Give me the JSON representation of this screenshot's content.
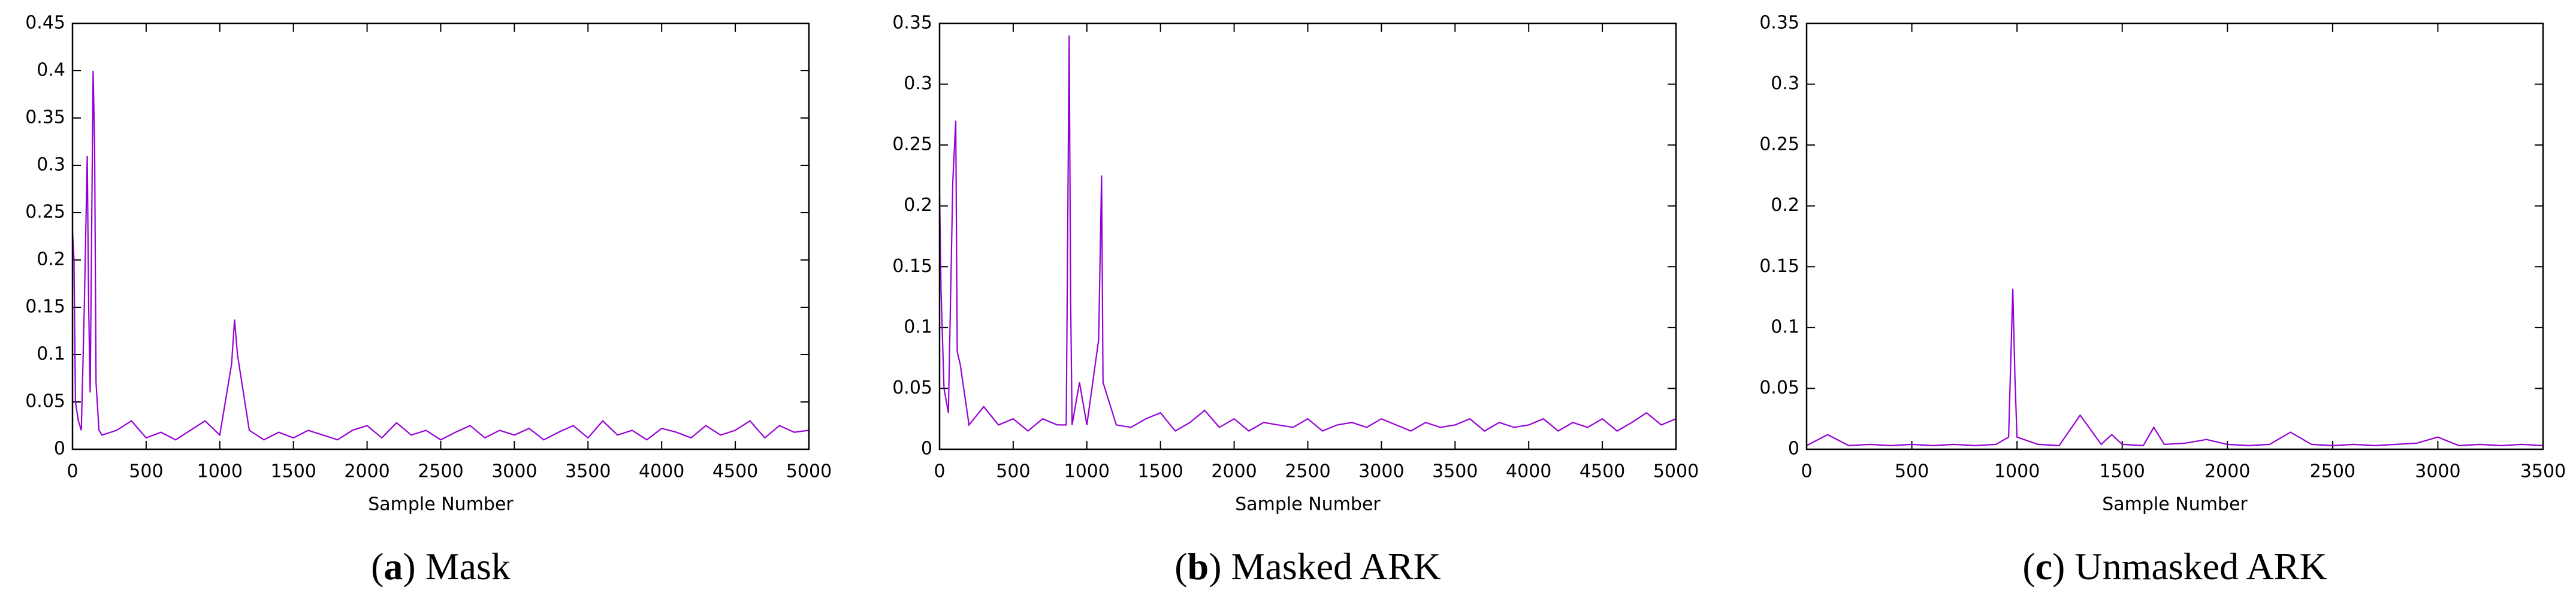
{
  "chart_data": [
    {
      "type": "line",
      "title": "(a) Mask",
      "xlabel": "Sample Number",
      "color": "#9400d3",
      "xlim": [
        0,
        5000
      ],
      "xticks": [
        0,
        500,
        1000,
        1500,
        2000,
        2500,
        3000,
        3500,
        4000,
        4500,
        5000
      ],
      "ylim": [
        0,
        0.45
      ],
      "yticks": [
        0,
        0.05,
        0.1,
        0.15,
        0.2,
        0.25,
        0.3,
        0.35,
        0.4,
        0.45
      ],
      "x": [
        0,
        10,
        20,
        40,
        60,
        80,
        100,
        110,
        120,
        140,
        150,
        160,
        180,
        200,
        300,
        400,
        500,
        600,
        700,
        800,
        900,
        1000,
        1080,
        1100,
        1120,
        1200,
        1300,
        1400,
        1500,
        1600,
        1700,
        1800,
        1900,
        2000,
        2100,
        2200,
        2300,
        2400,
        2500,
        2600,
        2700,
        2800,
        2900,
        3000,
        3100,
        3200,
        3300,
        3400,
        3500,
        3600,
        3700,
        3800,
        3900,
        4000,
        4100,
        4200,
        4300,
        4400,
        4500,
        4600,
        4700,
        4800,
        4900,
        5000
      ],
      "values": [
        0.23,
        0.2,
        0.05,
        0.03,
        0.02,
        0.15,
        0.31,
        0.15,
        0.06,
        0.4,
        0.32,
        0.07,
        0.02,
        0.015,
        0.02,
        0.03,
        0.012,
        0.018,
        0.01,
        0.02,
        0.03,
        0.015,
        0.09,
        0.137,
        0.1,
        0.02,
        0.01,
        0.018,
        0.012,
        0.02,
        0.015,
        0.01,
        0.02,
        0.025,
        0.012,
        0.028,
        0.015,
        0.02,
        0.01,
        0.018,
        0.025,
        0.012,
        0.02,
        0.015,
        0.022,
        0.01,
        0.018,
        0.025,
        0.012,
        0.03,
        0.015,
        0.02,
        0.01,
        0.022,
        0.018,
        0.012,
        0.025,
        0.015,
        0.02,
        0.03,
        0.012,
        0.025,
        0.018,
        0.02
      ]
    },
    {
      "type": "line",
      "title": "(b) Masked ARK",
      "xlabel": "Sample Number",
      "color": "#9400d3",
      "xlim": [
        0,
        5000
      ],
      "xticks": [
        0,
        500,
        1000,
        1500,
        2000,
        2500,
        3000,
        3500,
        4000,
        4500,
        5000
      ],
      "ylim": [
        0,
        0.35
      ],
      "yticks": [
        0,
        0.05,
        0.1,
        0.15,
        0.2,
        0.25,
        0.3,
        0.35
      ],
      "x": [
        0,
        10,
        30,
        60,
        90,
        110,
        120,
        140,
        200,
        300,
        400,
        500,
        600,
        700,
        800,
        860,
        880,
        890,
        900,
        950,
        1000,
        1080,
        1100,
        1110,
        1200,
        1300,
        1400,
        1500,
        1600,
        1700,
        1800,
        1900,
        2000,
        2100,
        2200,
        2300,
        2400,
        2500,
        2600,
        2700,
        2800,
        2900,
        3000,
        3100,
        3200,
        3300,
        3400,
        3500,
        3600,
        3700,
        3800,
        3900,
        4000,
        4100,
        4200,
        4300,
        4400,
        4500,
        4600,
        4700,
        4800,
        4900,
        5000
      ],
      "values": [
        0.21,
        0.13,
        0.05,
        0.03,
        0.22,
        0.27,
        0.08,
        0.07,
        0.02,
        0.035,
        0.02,
        0.025,
        0.015,
        0.025,
        0.02,
        0.02,
        0.34,
        0.12,
        0.02,
        0.055,
        0.02,
        0.09,
        0.225,
        0.055,
        0.02,
        0.018,
        0.025,
        0.03,
        0.015,
        0.022,
        0.032,
        0.018,
        0.025,
        0.015,
        0.022,
        0.02,
        0.018,
        0.025,
        0.015,
        0.02,
        0.022,
        0.018,
        0.025,
        0.02,
        0.015,
        0.022,
        0.018,
        0.02,
        0.025,
        0.015,
        0.022,
        0.018,
        0.02,
        0.025,
        0.015,
        0.022,
        0.018,
        0.025,
        0.015,
        0.022,
        0.03,
        0.02,
        0.025
      ]
    },
    {
      "type": "line",
      "title": "(c) Unmasked ARK",
      "xlabel": "Sample Number",
      "color": "#9400d3",
      "xlim": [
        0,
        3500
      ],
      "xticks": [
        0,
        500,
        1000,
        1500,
        2000,
        2500,
        3000,
        3500
      ],
      "ylim": [
        0,
        0.35
      ],
      "yticks": [
        0,
        0.05,
        0.1,
        0.15,
        0.2,
        0.25,
        0.3,
        0.35
      ],
      "x": [
        0,
        100,
        200,
        300,
        400,
        500,
        600,
        700,
        800,
        900,
        960,
        980,
        990,
        1000,
        1100,
        1200,
        1300,
        1400,
        1450,
        1500,
        1600,
        1650,
        1700,
        1800,
        1900,
        2000,
        2100,
        2200,
        2300,
        2400,
        2500,
        2600,
        2700,
        2800,
        2900,
        3000,
        3100,
        3200,
        3300,
        3400,
        3500
      ],
      "values": [
        0.003,
        0.012,
        0.003,
        0.004,
        0.003,
        0.004,
        0.003,
        0.004,
        0.003,
        0.004,
        0.01,
        0.132,
        0.06,
        0.01,
        0.004,
        0.003,
        0.028,
        0.004,
        0.012,
        0.004,
        0.003,
        0.018,
        0.004,
        0.005,
        0.008,
        0.004,
        0.003,
        0.004,
        0.014,
        0.004,
        0.003,
        0.004,
        0.003,
        0.004,
        0.005,
        0.01,
        0.003,
        0.004,
        0.003,
        0.004,
        0.003
      ]
    }
  ]
}
